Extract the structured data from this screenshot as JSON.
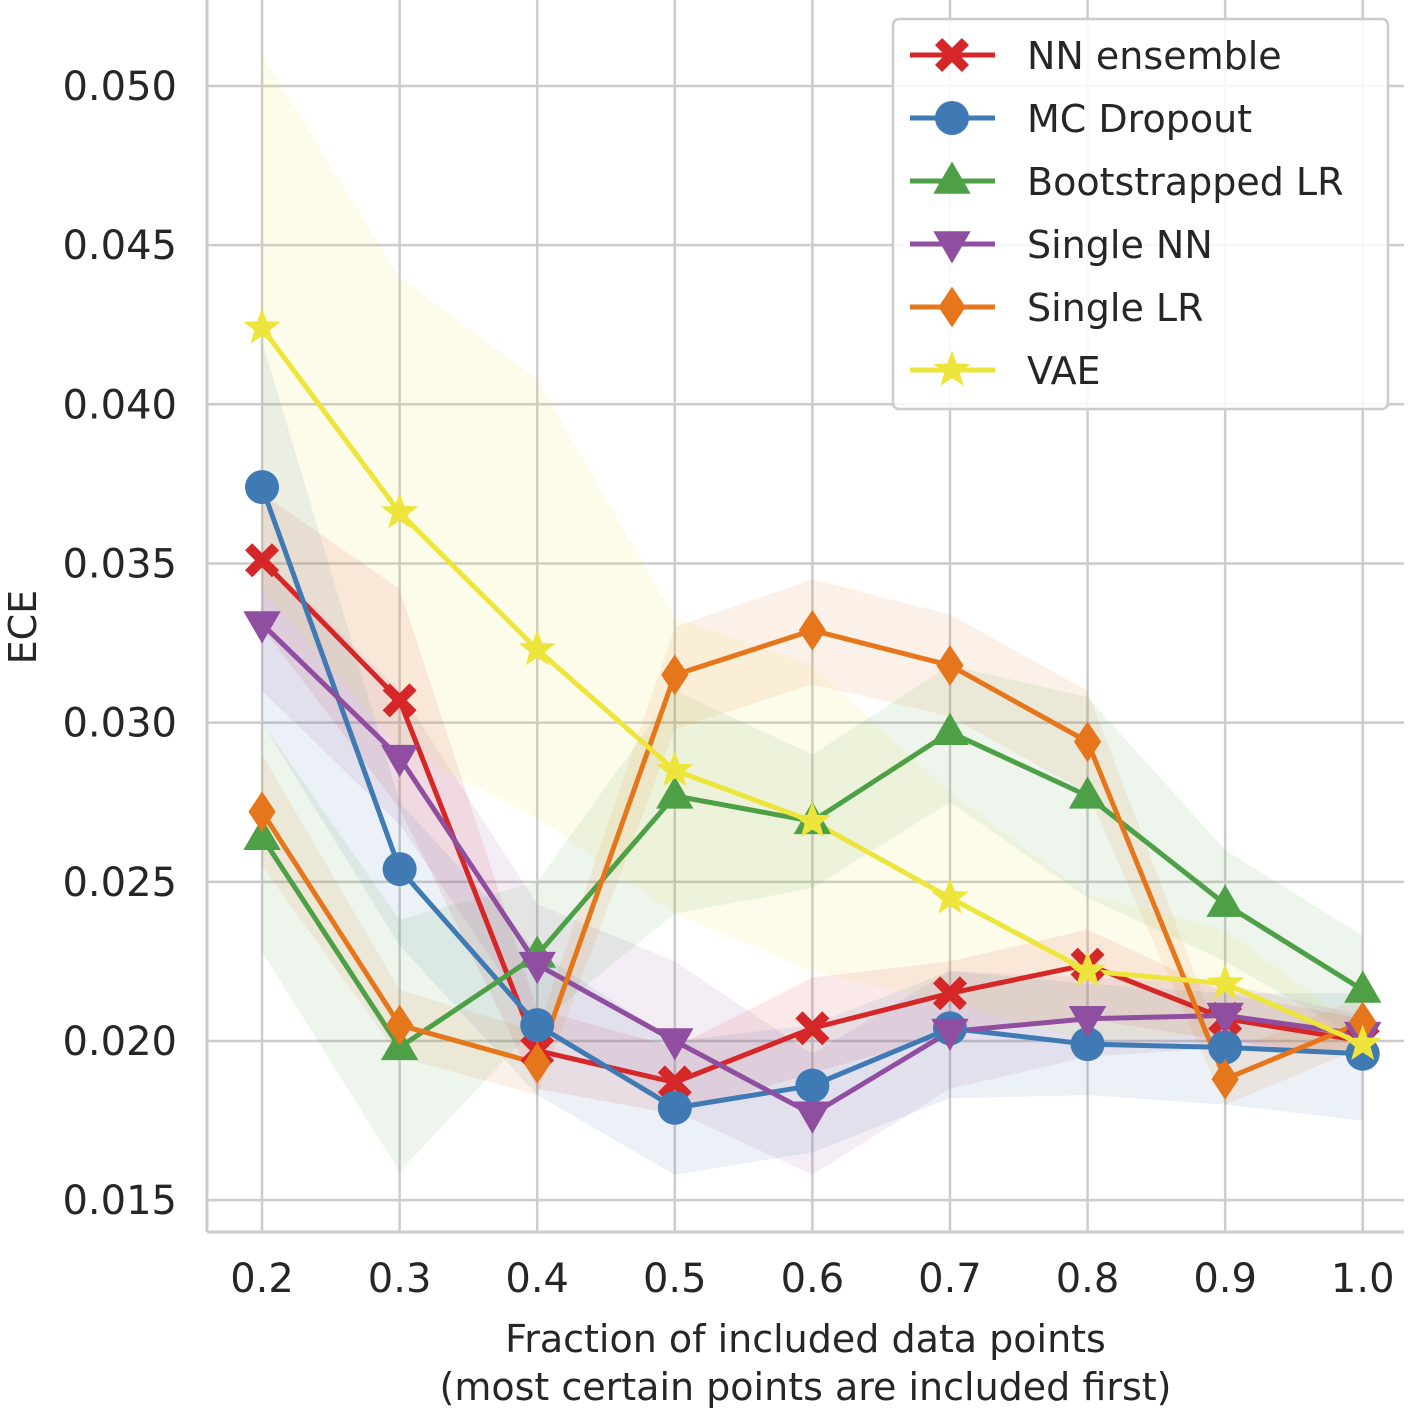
{
  "chart_data": {
    "type": "line",
    "title": "",
    "xlabel": "Fraction of included data points",
    "xlabel_line2": "(most certain points are included first)",
    "ylabel": "ECE",
    "x": [
      0.2,
      0.3,
      0.4,
      0.5,
      0.6,
      0.7,
      0.8,
      0.9,
      1.0
    ],
    "x_tick_labels": [
      "0.2",
      "0.3",
      "0.4",
      "0.5",
      "0.6",
      "0.7",
      "0.8",
      "0.9",
      "1.0"
    ],
    "y_ticks": [
      0.015,
      0.02,
      0.025,
      0.03,
      0.035,
      0.04,
      0.045,
      0.05
    ],
    "y_tick_labels": [
      "0.015",
      "0.020",
      "0.025",
      "0.030",
      "0.035",
      "0.040",
      "0.045",
      "0.050"
    ],
    "xlim": [
      0.16,
      1.03
    ],
    "ylim": [
      0.014,
      0.0527
    ],
    "grid": true,
    "legend_position": "top-right",
    "series": [
      {
        "name": "NN ensemble",
        "color": "#d62728",
        "marker": "x-filled",
        "values": [
          0.0351,
          0.0307,
          0.0197,
          0.0187,
          0.0204,
          0.0215,
          0.0224,
          0.0207,
          0.02
        ],
        "lower": [
          0.033,
          0.0273,
          0.0185,
          0.0177,
          0.019,
          0.0202,
          0.0207,
          0.02,
          0.0195
        ],
        "upper": [
          0.0372,
          0.0342,
          0.021,
          0.0198,
          0.022,
          0.0225,
          0.0235,
          0.0215,
          0.0207
        ]
      },
      {
        "name": "MC Dropout",
        "color": "#3f7ab5",
        "marker": "circle",
        "values": [
          0.0374,
          0.0254,
          0.0205,
          0.0179,
          0.0186,
          0.0204,
          0.0199,
          0.0198,
          0.0196
        ],
        "lower": [
          0.03,
          0.023,
          0.0183,
          0.0158,
          0.0165,
          0.0182,
          0.0183,
          0.018,
          0.0175
        ],
        "upper": [
          0.042,
          0.0275,
          0.0228,
          0.02,
          0.0205,
          0.0222,
          0.0218,
          0.0215,
          0.0215
        ]
      },
      {
        "name": "Bootstrapped LR",
        "color": "#4ea047",
        "marker": "triangle-up",
        "values": [
          0.0264,
          0.0198,
          0.0227,
          0.0277,
          0.0269,
          0.0297,
          0.0277,
          0.0243,
          0.0216
        ],
        "lower": [
          0.0228,
          0.0159,
          0.0205,
          0.024,
          0.0248,
          0.0275,
          0.0245,
          0.0225,
          0.02
        ],
        "upper": [
          0.03,
          0.0238,
          0.025,
          0.031,
          0.029,
          0.0318,
          0.0308,
          0.026,
          0.0233
        ]
      },
      {
        "name": "Single NN",
        "color": "#8f4ea0",
        "marker": "triangle-down",
        "values": [
          0.0331,
          0.0289,
          0.0224,
          0.02,
          0.0177,
          0.0203,
          0.0207,
          0.0208,
          0.0202
        ],
        "lower": [
          0.031,
          0.0268,
          0.0205,
          0.0178,
          0.0158,
          0.0185,
          0.0195,
          0.0198,
          0.0197
        ],
        "upper": [
          0.0352,
          0.031,
          0.0243,
          0.0225,
          0.0196,
          0.0222,
          0.022,
          0.0218,
          0.0208
        ]
      },
      {
        "name": "Single LR",
        "color": "#e6761b",
        "marker": "diamond",
        "values": [
          0.0272,
          0.0205,
          0.0193,
          0.0315,
          0.0329,
          0.0318,
          0.0294,
          0.0188,
          0.0206
        ],
        "lower": [
          0.0255,
          0.0195,
          0.0183,
          0.0298,
          0.0312,
          0.0302,
          0.0278,
          0.018,
          0.0198
        ],
        "upper": [
          0.029,
          0.0216,
          0.0203,
          0.033,
          0.0345,
          0.0334,
          0.031,
          0.0196,
          0.0214
        ]
      },
      {
        "name": "VAE",
        "color": "#ede53b",
        "marker": "star",
        "values": [
          0.0424,
          0.0366,
          0.0323,
          0.0285,
          0.0269,
          0.0245,
          0.0222,
          0.0218,
          0.0199
        ],
        "lower": [
          0.0342,
          0.0292,
          0.027,
          0.024,
          0.0222,
          0.0212,
          0.02,
          0.0202,
          0.0195
        ],
        "upper": [
          0.051,
          0.044,
          0.0408,
          0.0333,
          0.0318,
          0.0278,
          0.0246,
          0.0235,
          0.0203
        ]
      }
    ]
  }
}
